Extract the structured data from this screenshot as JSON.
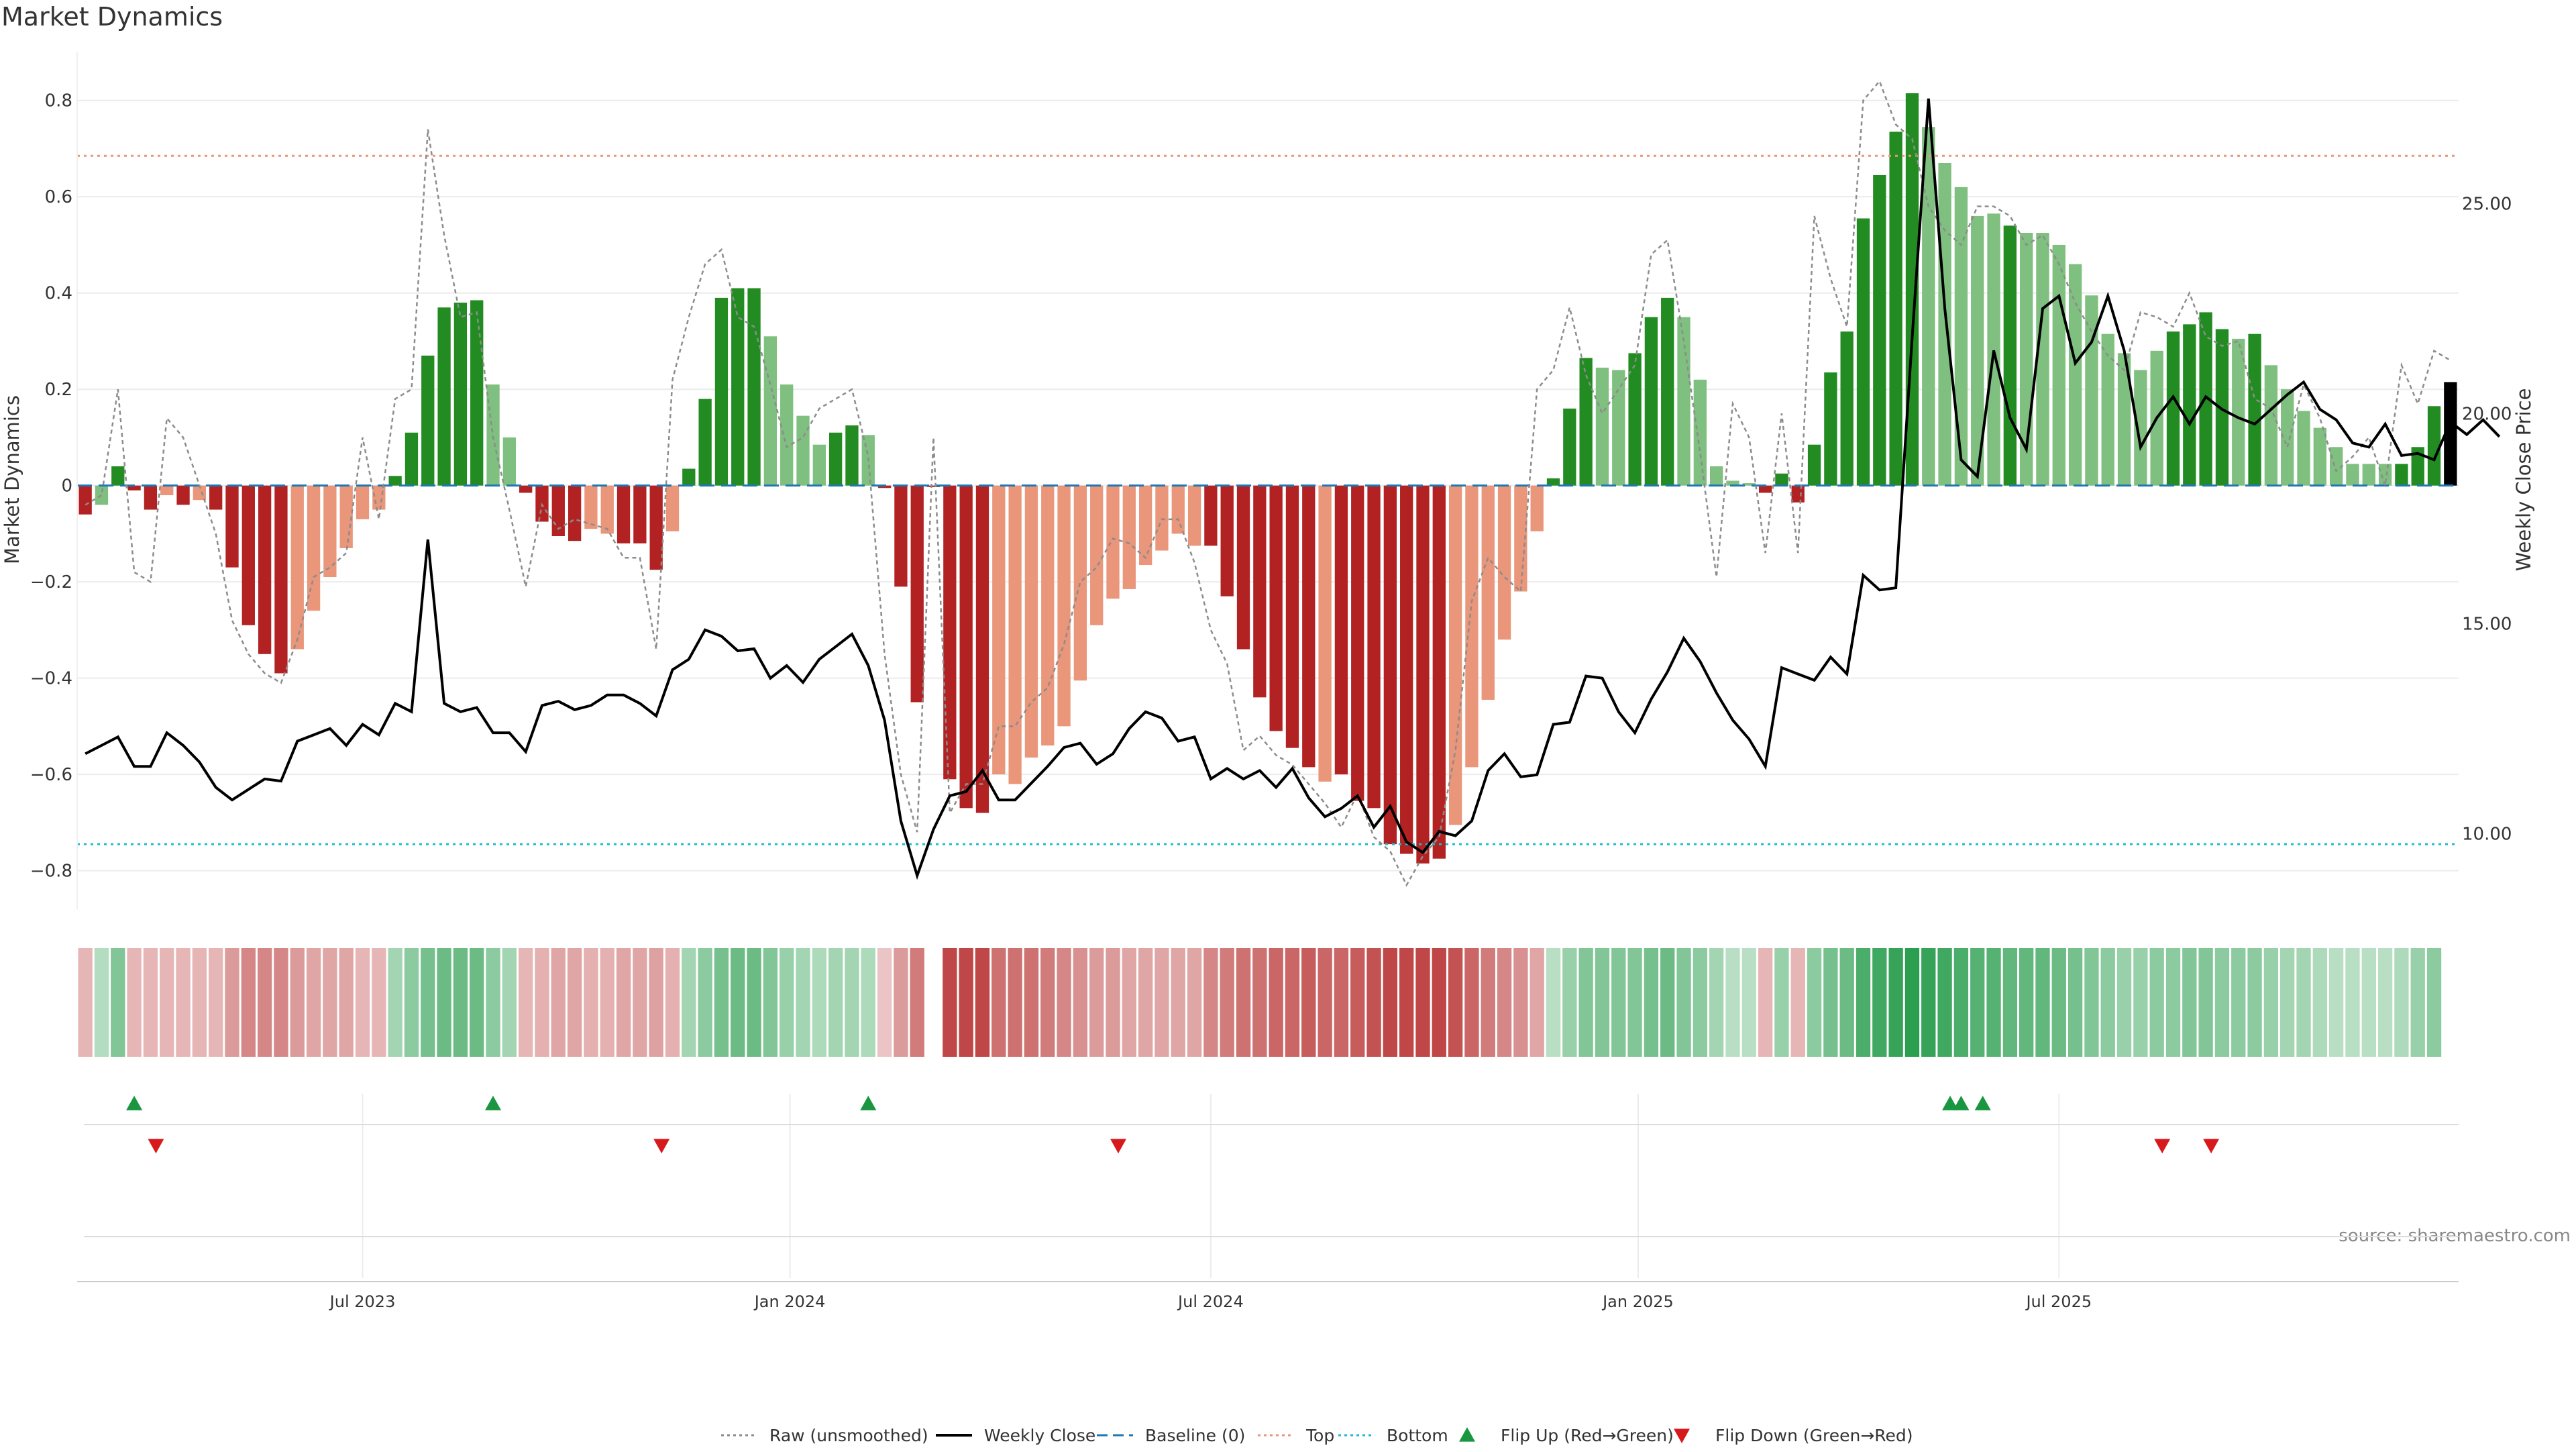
{
  "title": "Market Dynamics",
  "source": "source: sharemaestro.com",
  "colors": {
    "strong_green": "#228b22",
    "light_green": "#7fbf7f",
    "strong_red": "#b22222",
    "light_red": "#e9967a",
    "close_line": "#000000",
    "raw_line": "#8c8c8c",
    "baseline": "#1f77b4",
    "top": "#e9967a",
    "bottom": "#17becf",
    "flip_up": "#1a9641",
    "flip_down": "#d7191c"
  },
  "chart_data": {
    "type": "bar",
    "ylabel_left": "Market Dynamics",
    "ylabel_right": "Weekly Close Price",
    "ylim_left": [
      -0.88,
      0.9
    ],
    "ylim_right": [
      8.2,
      28.6
    ],
    "x_start": "2023-03-07",
    "week_days": 7,
    "x_ticks": [
      {
        "label": "Jul 2023",
        "week": 17
      },
      {
        "label": "Jan 2024",
        "week": 43.2
      },
      {
        "label": "Jul 2024",
        "week": 69
      },
      {
        "label": "Jan 2025",
        "week": 95.2
      },
      {
        "label": "Jul 2025",
        "week": 121
      }
    ],
    "y_ticks_left": [
      -0.8,
      -0.6,
      -0.4,
      -0.2,
      0,
      0.2,
      0.4,
      0.6,
      0.8
    ],
    "y_tick_labels_left": [
      "−0.8",
      "−0.6",
      "−0.4",
      "−0.2",
      "0",
      "0.2",
      "0.4",
      "0.6",
      "0.8"
    ],
    "y_ticks_right": [
      10,
      15,
      20,
      25
    ],
    "y_tick_labels_right": [
      "10.00",
      "15.00",
      "20.00",
      "25.00"
    ],
    "top_level": 0.685,
    "bottom_level": -0.745,
    "smoothed": [
      -0.06,
      -0.04,
      0.04,
      -0.01,
      -0.05,
      -0.02,
      -0.04,
      -0.03,
      -0.05,
      -0.17,
      -0.29,
      -0.35,
      -0.39,
      -0.34,
      -0.26,
      -0.19,
      -0.13,
      -0.07,
      -0.05,
      0.02,
      0.11,
      0.27,
      0.37,
      0.38,
      0.385,
      0.21,
      0.1,
      -0.015,
      -0.075,
      -0.105,
      -0.115,
      -0.09,
      -0.1,
      -0.12,
      -0.12,
      -0.175,
      -0.095,
      0.035,
      0.18,
      0.39,
      0.41,
      0.41,
      0.31,
      0.21,
      0.145,
      0.085,
      0.11,
      0.125,
      0.105,
      -0.005,
      -0.21,
      -0.45,
      -0.003,
      -0.61,
      -0.67,
      -0.68,
      -0.6,
      -0.62,
      -0.565,
      -0.54,
      -0.5,
      -0.405,
      -0.29,
      -0.235,
      -0.215,
      -0.165,
      -0.135,
      -0.1,
      -0.125,
      -0.125,
      -0.23,
      -0.34,
      -0.44,
      -0.51,
      -0.545,
      -0.585,
      -0.615,
      -0.6,
      -0.655,
      -0.67,
      -0.745,
      -0.765,
      -0.785,
      -0.775,
      -0.705,
      -0.585,
      -0.445,
      -0.32,
      -0.22,
      -0.095,
      0.015,
      0.16,
      0.265,
      0.245,
      0.24,
      0.275,
      0.35,
      0.39,
      0.35,
      0.22,
      0.04,
      0.01,
      0.005,
      -0.015,
      0.025,
      -0.035,
      0.085,
      0.235,
      0.32,
      0.555,
      0.645,
      0.735,
      0.815,
      0.745,
      0.67,
      0.62,
      0.56,
      0.565,
      0.54,
      0.525,
      0.525,
      0.5,
      0.46,
      0.395,
      0.315,
      0.275,
      0.24,
      0.28,
      0.32,
      0.335,
      0.36,
      0.325,
      0.305,
      0.315,
      0.25,
      0.2,
      0.155,
      0.12,
      0.08,
      0.045,
      0.045,
      0.045,
      0.045,
      0.08,
      0.165,
      0.215
    ],
    "colors_code": [
      "R",
      "L",
      "G",
      "R",
      "R",
      "l",
      "R",
      "l",
      "R",
      "R",
      "R",
      "R",
      "R",
      "l",
      "l",
      "l",
      "l",
      "l",
      "l",
      "G",
      "G",
      "G",
      "G",
      "G",
      "G",
      "L",
      "L",
      "R",
      "R",
      "R",
      "R",
      "l",
      "l",
      "R",
      "R",
      "R",
      "l",
      "G",
      "G",
      "G",
      "G",
      "G",
      "L",
      "L",
      "L",
      "L",
      "G",
      "G",
      "L",
      "R",
      "R",
      "R",
      "R",
      "R",
      "R",
      "R",
      "l",
      "l",
      "l",
      "l",
      "l",
      "l",
      "l",
      "l",
      "l",
      "l",
      "l",
      "l",
      "l",
      "R",
      "R",
      "R",
      "R",
      "R",
      "R",
      "R",
      "l",
      "R",
      "R",
      "R",
      "R",
      "R",
      "R",
      "R",
      "l",
      "l",
      "l",
      "l",
      "l",
      "l",
      "G",
      "G",
      "G",
      "L",
      "L",
      "G",
      "G",
      "G",
      "L",
      "L",
      "L",
      "L",
      "L",
      "R",
      "G",
      "R",
      "G",
      "G",
      "G",
      "G",
      "G",
      "G",
      "G",
      "L",
      "L",
      "L",
      "L",
      "L",
      "G",
      "L",
      "L",
      "L",
      "L",
      "L",
      "L",
      "L",
      "L",
      "L",
      "G",
      "G",
      "G",
      "G",
      "L",
      "G",
      "L",
      "L",
      "L",
      "L",
      "L",
      "L",
      "L",
      "L",
      "G",
      "G",
      "G"
    ],
    "close": [
      11.9,
      12.1,
      12.3,
      11.6,
      11.6,
      12.4,
      12.1,
      11.7,
      11.1,
      10.8,
      11.05,
      11.3,
      11.25,
      12.2,
      12.35,
      12.5,
      12.1,
      12.6,
      12.35,
      13.1,
      12.9,
      17.0,
      13.1,
      12.9,
      13.0,
      12.4,
      12.4,
      11.95,
      13.05,
      13.15,
      12.95,
      13.05,
      13.3,
      13.3,
      13.1,
      12.8,
      13.9,
      14.15,
      14.85,
      14.7,
      14.35,
      14.4,
      13.7,
      14.0,
      13.6,
      14.15,
      14.45,
      14.75,
      14.0,
      12.7,
      10.3,
      9.0,
      10.1,
      10.9,
      11.0,
      11.5,
      10.8,
      10.8,
      11.2,
      11.6,
      12.05,
      12.15,
      11.65,
      11.9,
      12.5,
      12.9,
      12.75,
      12.2,
      12.3,
      11.3,
      11.55,
      11.3,
      11.5,
      11.1,
      11.55,
      10.85,
      10.4,
      10.6,
      10.9,
      10.15,
      10.65,
      9.8,
      9.55,
      10.05,
      9.95,
      10.3,
      11.5,
      11.9,
      11.35,
      11.4,
      12.6,
      12.65,
      13.75,
      13.7,
      12.9,
      12.4,
      13.2,
      13.85,
      14.65,
      14.1,
      13.35,
      12.7,
      12.25,
      11.6,
      13.95,
      13.8,
      13.65,
      14.2,
      13.8,
      16.15,
      15.8,
      15.85,
      21.8,
      27.5,
      22.5,
      18.9,
      18.5,
      21.5,
      19.9,
      19.15,
      22.5,
      22.8,
      21.2,
      21.7,
      22.8,
      21.5,
      19.2,
      19.9,
      20.4,
      19.75,
      20.4,
      20.1,
      19.9,
      19.75,
      20.1,
      20.45,
      20.75,
      20.1,
      19.85,
      19.3,
      19.2,
      19.75,
      19.0,
      19.05,
      18.9,
      19.8,
      19.5,
      19.85,
      19.45
    ],
    "raw": [
      -0.04,
      -0.02,
      0.2,
      -0.18,
      -0.2,
      0.14,
      0.1,
      0.0,
      -0.1,
      -0.28,
      -0.35,
      -0.39,
      -0.41,
      -0.32,
      -0.19,
      -0.17,
      -0.14,
      0.1,
      -0.07,
      0.18,
      0.2,
      0.74,
      0.52,
      0.35,
      0.36,
      0.1,
      -0.05,
      -0.21,
      -0.04,
      -0.09,
      -0.07,
      -0.08,
      -0.09,
      -0.15,
      -0.15,
      -0.34,
      0.22,
      0.35,
      0.46,
      0.49,
      0.35,
      0.33,
      0.21,
      0.08,
      0.1,
      0.16,
      0.18,
      0.2,
      0.06,
      -0.35,
      -0.6,
      -0.72,
      0.1,
      -0.68,
      -0.62,
      -0.62,
      -0.5,
      -0.5,
      -0.45,
      -0.42,
      -0.33,
      -0.2,
      -0.17,
      -0.11,
      -0.12,
      -0.15,
      -0.07,
      -0.07,
      -0.16,
      -0.3,
      -0.37,
      -0.55,
      -0.52,
      -0.56,
      -0.58,
      -0.62,
      -0.66,
      -0.71,
      -0.64,
      -0.73,
      -0.76,
      -0.83,
      -0.77,
      -0.73,
      -0.55,
      -0.24,
      -0.15,
      -0.19,
      -0.22,
      0.2,
      0.24,
      0.37,
      0.23,
      0.15,
      0.2,
      0.25,
      0.48,
      0.51,
      0.3,
      0.07,
      -0.19,
      0.17,
      0.1,
      -0.14,
      0.15,
      -0.14,
      0.56,
      0.43,
      0.33,
      0.8,
      0.84,
      0.75,
      0.72,
      0.58,
      0.53,
      0.5,
      0.58,
      0.58,
      0.56,
      0.5,
      0.52,
      0.46,
      0.38,
      0.32,
      0.27,
      0.24,
      0.36,
      0.35,
      0.33,
      0.4,
      0.31,
      0.29,
      0.3,
      0.18,
      0.16,
      0.08,
      0.21,
      0.14,
      0.03,
      0.06,
      0.1,
      0.0,
      0.25,
      0.17,
      0.28,
      0.26
    ],
    "heat_strength": [
      0.22,
      0.22,
      0.45,
      0.22,
      0.22,
      0.22,
      0.22,
      0.22,
      0.22,
      0.35,
      0.45,
      0.45,
      0.45,
      0.35,
      0.3,
      0.3,
      0.3,
      0.22,
      0.22,
      0.3,
      0.4,
      0.5,
      0.55,
      0.55,
      0.55,
      0.4,
      0.3,
      0.22,
      0.25,
      0.3,
      0.3,
      0.25,
      0.25,
      0.3,
      0.3,
      0.32,
      0.25,
      0.3,
      0.4,
      0.5,
      0.55,
      0.55,
      0.45,
      0.35,
      0.3,
      0.25,
      0.3,
      0.3,
      0.25,
      0.15,
      0.35,
      0.5,
      0,
      0.75,
      0.75,
      0.75,
      0.55,
      0.55,
      0.55,
      0.5,
      0.45,
      0.4,
      0.35,
      0.35,
      0.3,
      0.3,
      0.3,
      0.3,
      0.3,
      0.45,
      0.5,
      0.55,
      0.55,
      0.6,
      0.6,
      0.65,
      0.6,
      0.6,
      0.65,
      0.7,
      0.75,
      0.75,
      0.75,
      0.75,
      0.7,
      0.6,
      0.5,
      0.45,
      0.4,
      0.3,
      0.2,
      0.35,
      0.45,
      0.45,
      0.45,
      0.45,
      0.5,
      0.55,
      0.45,
      0.4,
      0.3,
      0.2,
      0.2,
      0.22,
      0.35,
      0.22,
      0.4,
      0.5,
      0.55,
      0.7,
      0.75,
      0.8,
      0.85,
      0.8,
      0.75,
      0.7,
      0.65,
      0.65,
      0.6,
      0.6,
      0.6,
      0.55,
      0.5,
      0.45,
      0.4,
      0.35,
      0.35,
      0.4,
      0.4,
      0.45,
      0.45,
      0.4,
      0.4,
      0.4,
      0.35,
      0.3,
      0.3,
      0.25,
      0.2,
      0.2,
      0.2,
      0.2,
      0.25,
      0.35,
      0.4
    ],
    "flip_up_weeks": [
      3,
      25,
      48,
      115
    ],
    "flip_up_weeks_late": [
      114,
      116
    ],
    "flip_down_weeks": [
      4,
      35,
      63,
      127,
      130
    ],
    "legend": [
      {
        "label": "Raw (unsmoothed)",
        "kind": "dotted-line",
        "color": "#8c8c8c"
      },
      {
        "label": "Weekly Close",
        "kind": "solid-line",
        "color": "#000000"
      },
      {
        "label": "Baseline (0)",
        "kind": "dashed-line",
        "color": "#1f77b4"
      },
      {
        "label": "Top",
        "kind": "dotted-line",
        "color": "#e9967a"
      },
      {
        "label": "Bottom",
        "kind": "dotted-line",
        "color": "#17becf"
      },
      {
        "label": "Flip Up (Red→Green)",
        "kind": "up-triangle",
        "color": "#1a9641"
      },
      {
        "label": "Flip Down (Green→Red)",
        "kind": "down-triangle",
        "color": "#d7191c"
      }
    ]
  }
}
